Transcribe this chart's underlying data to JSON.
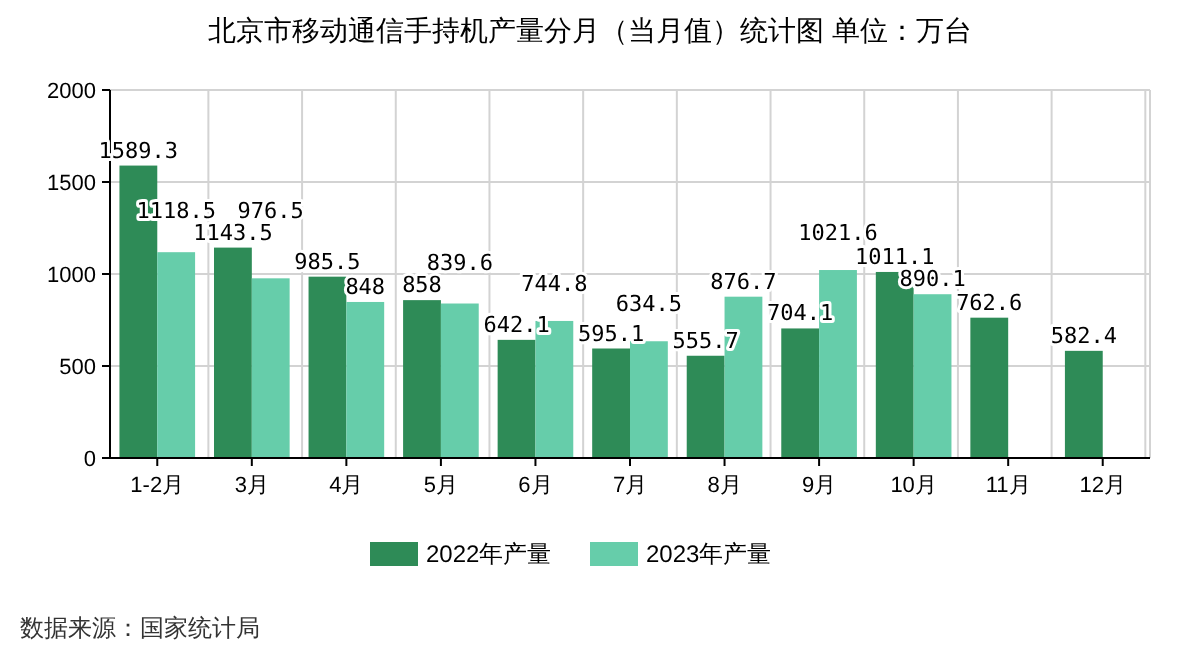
{
  "chart_data": {
    "type": "bar",
    "title": "北京市移动通信手持机产量分月（当月值）统计图 单位：万台",
    "categories": [
      "1-2月",
      "3月",
      "4月",
      "5月",
      "6月",
      "7月",
      "8月",
      "9月",
      "10月",
      "11月",
      "12月"
    ],
    "series": [
      {
        "name": "2022年产量",
        "color": "#2e8b57",
        "values": [
          1589.3,
          1143.5,
          985.5,
          858,
          642.1,
          595.1,
          555.7,
          704.1,
          1011.1,
          762.6,
          582.4
        ]
      },
      {
        "name": "2023年产量",
        "color": "#66cdaa",
        "values": [
          1118.5,
          976.5,
          848,
          839.6,
          744.8,
          634.5,
          876.7,
          1021.6,
          890.1,
          null,
          null
        ]
      }
    ],
    "ylim": [
      0,
      2000
    ],
    "yticks": [
      0,
      500,
      1000,
      1500,
      2000
    ],
    "grid": true,
    "legend": "bottom",
    "data_labels": true,
    "annotations": [
      "数据来源：国家统计局"
    ]
  }
}
